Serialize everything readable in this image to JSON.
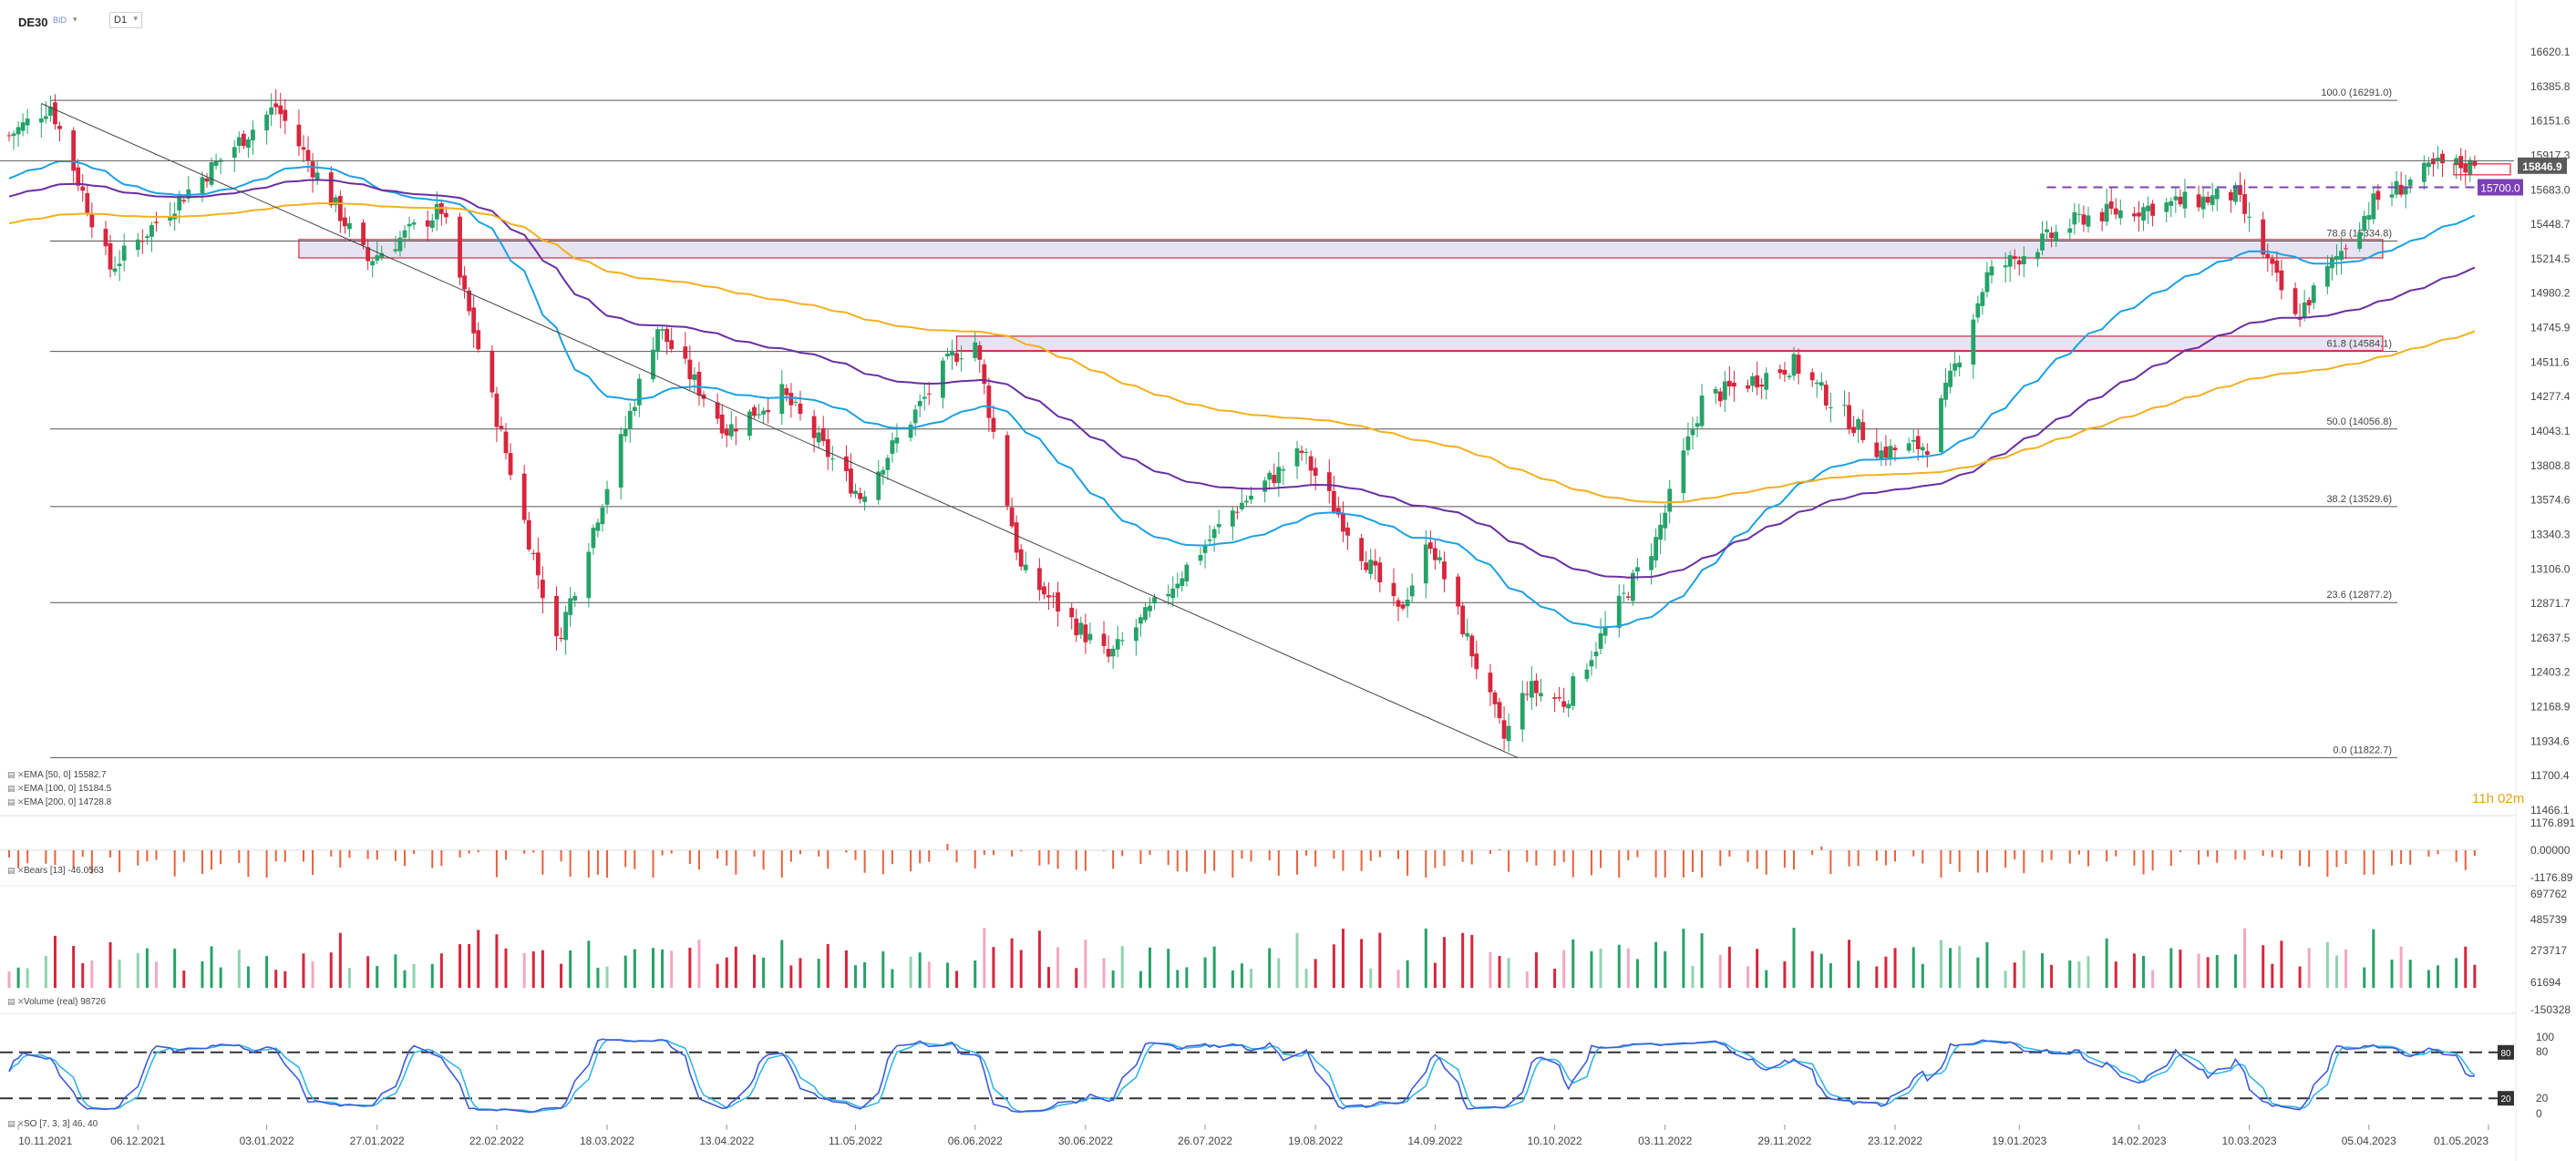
{
  "header": {
    "symbol": "DE30",
    "price_type": "BID",
    "timeframe": "D1"
  },
  "countdown": "11h 02m",
  "indicators": {
    "ema50": "EMA [50, 0]  15582.7",
    "ema100": "EMA [100, 0]  15184.5",
    "ema200": "EMA [200, 0]  14728.8",
    "bears": "Bears [13]  -46.0563",
    "volume": "Volume (real)  98726",
    "so": "SO [7, 3, 3]  46, 40"
  },
  "colors": {
    "bull": "#26a269",
    "bear": "#d7263d",
    "ema50": "#1ba1e2",
    "ema100": "#6a2fa0",
    "ema200": "#f2b01e",
    "zone_fill": "#e6e3f2",
    "zone_border": "#d7263d",
    "resistance_dash": "#7b3fb8",
    "price_tag": "#5b5b5b",
    "level_tag": "#7b3fb8",
    "bears_bars": "#e8613c",
    "so_main": "#3d5bd9",
    "so_signal": "#35b6e6"
  },
  "chart_data": [
    {
      "type": "candlestick",
      "title": "DE30",
      "price_axis_ticks": [
        "16620.1",
        "16385.8",
        "16151.6",
        "15917.3",
        "15683.0",
        "15448.7",
        "15214.5",
        "14980.2",
        "14745.9",
        "14511.6",
        "14277.4",
        "14043.1",
        "13808.8",
        "13574.6",
        "13340.3",
        "13106.0",
        "12871.7",
        "12637.5",
        "12403.2",
        "12168.9",
        "11934.6",
        "11700.4",
        "11466.1"
      ],
      "date_axis_ticks": [
        "10.11.2021",
        "06.12.2021",
        "03.01.2022",
        "27.01.2022",
        "22.02.2022",
        "18.03.2022",
        "13.04.2022",
        "11.05.2022",
        "06.06.2022",
        "30.06.2022",
        "26.07.2022",
        "19.08.2022",
        "14.09.2022",
        "10.10.2022",
        "03.11.2022",
        "29.11.2022",
        "23.12.2022",
        "19.01.2023",
        "14.02.2023",
        "10.03.2023",
        "05.04.2023",
        "01.05.2023"
      ],
      "ylim": [
        11466.1,
        16620.1
      ],
      "last_price": 15846.9,
      "last_price_label": "15846.9",
      "level_tag_label": "15700.0",
      "fibonacci": [
        {
          "ratio": "100.0",
          "price": 16291.0,
          "label": "100.0 (16291.0)"
        },
        {
          "ratio": "78.6",
          "price": 15334.8,
          "label": "78.6 (15334.8)"
        },
        {
          "ratio": "61.8",
          "price": 14584.1,
          "label": "61.8 (14584.1)"
        },
        {
          "ratio": "50.0",
          "price": 14056.8,
          "label": "50.0 (14056.8)"
        },
        {
          "ratio": "38.2",
          "price": 13529.6,
          "label": "38.2 (13529.6)"
        },
        {
          "ratio": "23.6",
          "price": 12877.2,
          "label": "23.6 (12877.2)"
        },
        {
          "ratio": "0.0",
          "price": 11822.7,
          "label": "0.0 (11822.7)"
        }
      ],
      "zones": [
        {
          "price_top": 15345,
          "price_bottom": 15220,
          "from": "10.01.2022",
          "to": "08.04.2023"
        },
        {
          "price_top": 14688,
          "price_bottom": 14590,
          "from": "02.06.2022",
          "to": "08.04.2023"
        }
      ],
      "horizontal_line": 15880,
      "resistance_dashed": {
        "price": 15700.0,
        "from": "25.01.2023",
        "to": "28.04.2023"
      },
      "downtrend_line": {
        "from": [
          "15.11.2021",
          16270
        ],
        "to": [
          "02.10.2022",
          11822.7
        ]
      },
      "anchors": [
        [
          "08.11.2021",
          16050
        ],
        [
          "17.11.2021",
          16260
        ],
        [
          "30.11.2021",
          15150
        ],
        [
          "16.12.2021",
          15650
        ],
        [
          "05.01.2022",
          16250
        ],
        [
          "25.01.2022",
          15200
        ],
        [
          "10.02.2022",
          15550
        ],
        [
          "07.03.2022",
          12600
        ],
        [
          "29.03.2022",
          14750
        ],
        [
          "13.04.2022",
          14050
        ],
        [
          "25.04.2022",
          14300
        ],
        [
          "12.05.2022",
          13600
        ],
        [
          "01.06.2022",
          14550
        ],
        [
          "06.06.2022",
          14650
        ],
        [
          "16.06.2022",
          13100
        ],
        [
          "05.07.2022",
          12500
        ],
        [
          "15.07.2022",
          12850
        ],
        [
          "01.08.2022",
          13500
        ],
        [
          "16.08.2022",
          13900
        ],
        [
          "06.09.2022",
          12800
        ],
        [
          "13.09.2022",
          13300
        ],
        [
          "29.09.2022",
          11950
        ],
        [
          "04.10.2022",
          12300
        ],
        [
          "12.10.2022",
          12200
        ],
        [
          "01.11.2022",
          13300
        ],
        [
          "11.11.2022",
          14250
        ],
        [
          "01.12.2022",
          14500
        ],
        [
          "20.12.2022",
          13900
        ],
        [
          "30.12.2022",
          13950
        ],
        [
          "12.01.2023",
          15100
        ],
        [
          "02.02.2023",
          15500
        ],
        [
          "07.03.2023",
          15650
        ],
        [
          "20.03.2023",
          14800
        ],
        [
          "06.04.2023",
          15600
        ],
        [
          "20.04.2023",
          15850
        ],
        [
          "28.04.2023",
          15846.9
        ]
      ],
      "ema_periods": [
        50,
        100,
        200
      ]
    },
    {
      "type": "bar",
      "title": "Bears [13]",
      "value_axis_ticks": [
        "1176.891",
        "0.00000",
        "-1176.89"
      ]
    },
    {
      "type": "bar",
      "title": "Volume (real)",
      "value_axis_ticks": [
        "697762",
        "485739",
        "273717",
        "61694",
        "-150328"
      ]
    },
    {
      "type": "line",
      "title": "SO [7, 3, 3]",
      "value_axis_ticks": [
        "100",
        "80",
        "20",
        "0"
      ],
      "levels": [
        {
          "value": 80,
          "label": "80"
        },
        {
          "value": 20,
          "label": "20"
        }
      ]
    }
  ]
}
